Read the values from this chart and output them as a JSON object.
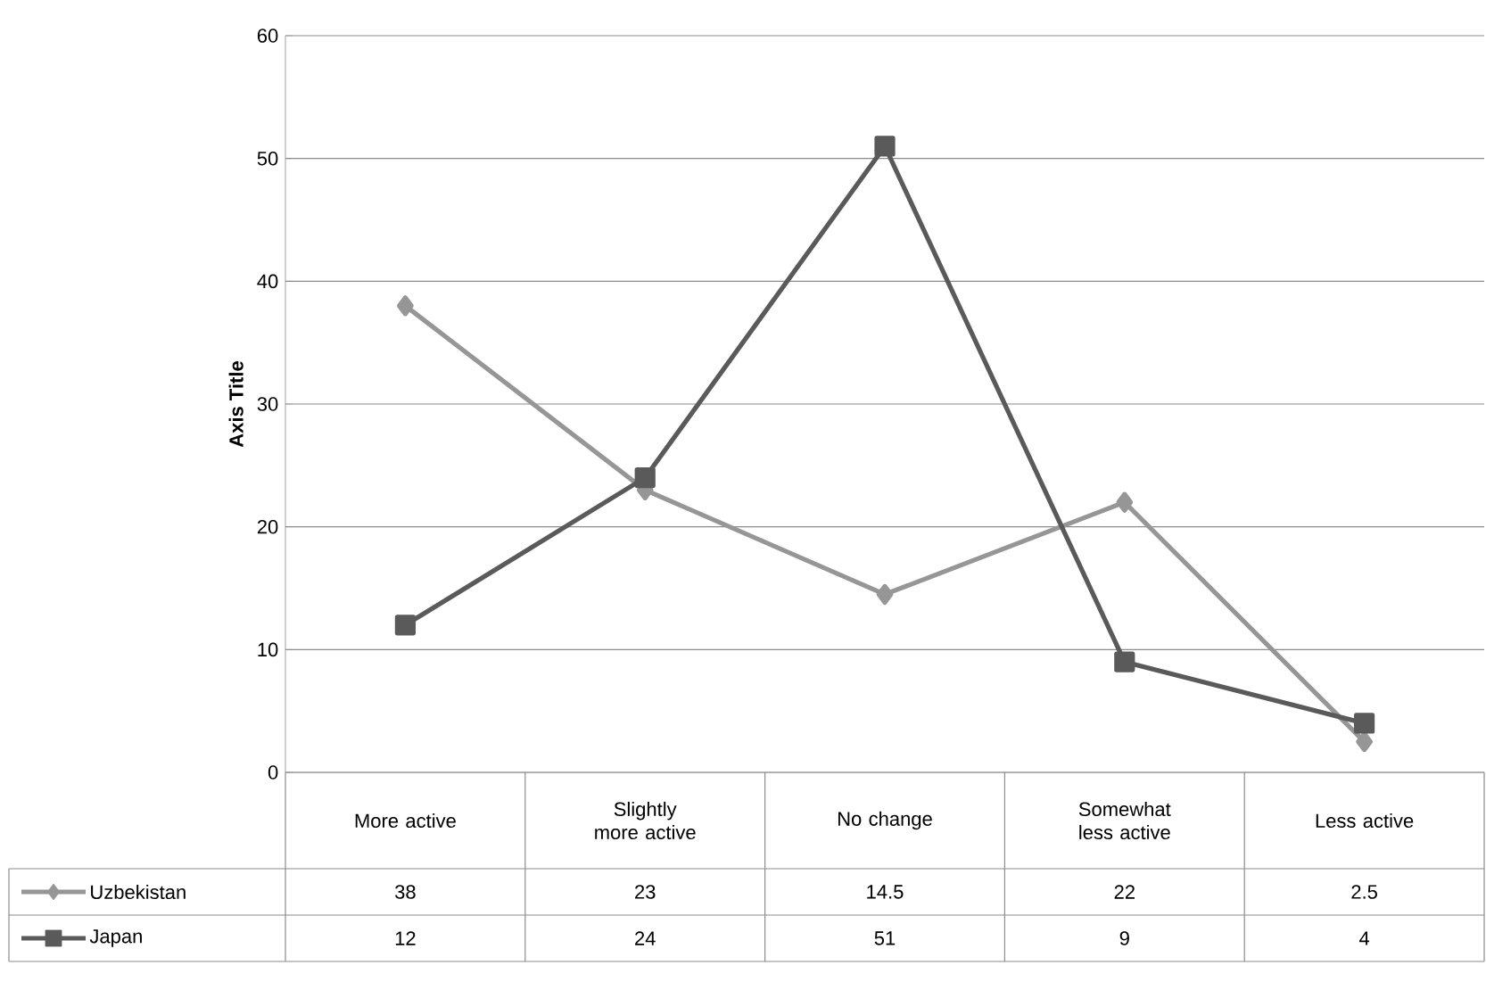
{
  "chart_data": {
    "type": "line",
    "ylabel": "Axis Title",
    "categories": [
      "More active",
      "Slightly more active",
      "No change",
      "Somewhat less active",
      "Less active"
    ],
    "series": [
      {
        "name": "Uzbekistan",
        "color": "#969696",
        "marker": "diamond",
        "values": [
          38,
          23,
          14.5,
          22,
          2.5
        ]
      },
      {
        "name": "Japan",
        "color": "#5a5a5a",
        "marker": "square",
        "values": [
          12,
          24,
          51,
          9,
          4
        ]
      }
    ],
    "ylim": [
      0,
      60
    ],
    "yticks": [
      0,
      10,
      20,
      30,
      40,
      50,
      60
    ],
    "grid": "y",
    "legend": "bottom left",
    "data_labels": true
  }
}
